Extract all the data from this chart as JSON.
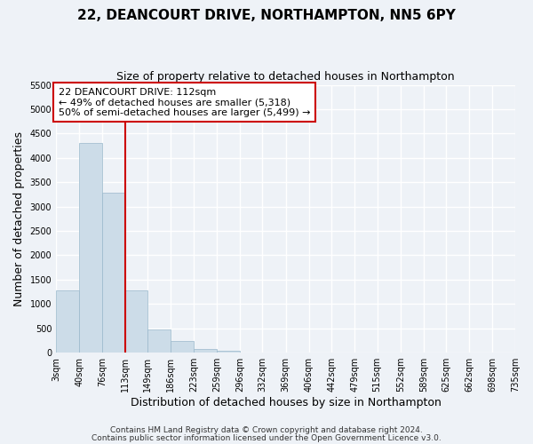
{
  "title": "22, DEANCOURT DRIVE, NORTHAMPTON, NN5 6PY",
  "subtitle": "Size of property relative to detached houses in Northampton",
  "xlabel": "Distribution of detached houses by size in Northampton",
  "ylabel": "Number of detached properties",
  "footer_line1": "Contains HM Land Registry data © Crown copyright and database right 2024.",
  "footer_line2": "Contains public sector information licensed under the Open Government Licence v3.0.",
  "annotation_line1": "22 DEANCOURT DRIVE: 112sqm",
  "annotation_line2": "← 49% of detached houses are smaller (5,318)",
  "annotation_line3": "50% of semi-detached houses are larger (5,499) →",
  "bar_values": [
    1270,
    4310,
    3280,
    1280,
    480,
    230,
    80,
    40,
    0,
    0,
    0,
    0,
    0,
    0,
    0,
    0,
    0,
    0,
    0,
    0
  ],
  "bin_edges": [
    3,
    40,
    76,
    113,
    149,
    186,
    223,
    259,
    296,
    332,
    369,
    406,
    442,
    479,
    515,
    552,
    589,
    625,
    662,
    698,
    735
  ],
  "tick_labels": [
    "3sqm",
    "40sqm",
    "76sqm",
    "113sqm",
    "149sqm",
    "186sqm",
    "223sqm",
    "259sqm",
    "296sqm",
    "332sqm",
    "369sqm",
    "406sqm",
    "442sqm",
    "479sqm",
    "515sqm",
    "552sqm",
    "589sqm",
    "625sqm",
    "662sqm",
    "698sqm",
    "735sqm"
  ],
  "ylim": [
    0,
    5500
  ],
  "yticks": [
    0,
    500,
    1000,
    1500,
    2000,
    2500,
    3000,
    3500,
    4000,
    4500,
    5000,
    5500
  ],
  "bar_color": "#ccdce8",
  "bar_edge_color": "#9ab8cc",
  "vline_x": 113,
  "vline_color": "#cc0000",
  "annotation_box_edge_color": "#cc0000",
  "background_color": "#eef2f7",
  "grid_color": "#ffffff",
  "title_fontsize": 11,
  "subtitle_fontsize": 9,
  "axis_label_fontsize": 9,
  "tick_fontsize": 7,
  "annotation_fontsize": 8,
  "footer_fontsize": 6.5
}
